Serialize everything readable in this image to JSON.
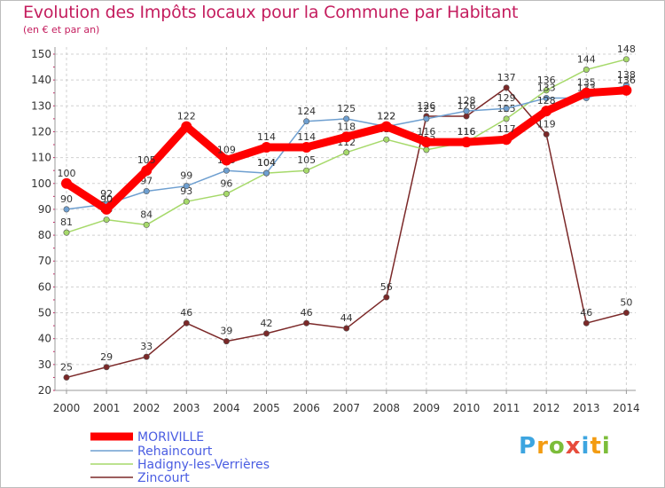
{
  "chart_data": {
    "type": "line",
    "title": "Evolution des Impôts locaux pour la Commune par Habitant",
    "subtitle": "(en € et par an)",
    "x": [
      "2000",
      "2001",
      "2002",
      "2003",
      "2004",
      "2005",
      "2006",
      "2007",
      "2008",
      "2009",
      "2010",
      "2011",
      "2012",
      "2013",
      "2014"
    ],
    "yticks": [
      20,
      30,
      40,
      50,
      60,
      70,
      80,
      90,
      100,
      110,
      120,
      130,
      140,
      150
    ],
    "ylim": [
      20,
      150
    ],
    "grid": true,
    "legend_position": "bottom-left",
    "series": [
      {
        "name": "MORIVILLE",
        "color": "#ff0000",
        "values": [
          100,
          90,
          105,
          122,
          109,
          114,
          114,
          118,
          122,
          116,
          116,
          117,
          128,
          135,
          136
        ]
      },
      {
        "name": "Rehaincourt",
        "color": "#6e9fd0",
        "values": [
          90,
          92,
          97,
          99,
          105,
          104,
          124,
          125,
          122,
          125,
          128,
          129,
          133,
          133,
          138
        ]
      },
      {
        "name": "Hadigny-les-Verrières",
        "color": "#a6d96a",
        "values": [
          81,
          86,
          84,
          93,
          96,
          104,
          105,
          112,
          117,
          113,
          116,
          125,
          136,
          144,
          148
        ]
      },
      {
        "name": "Zincourt",
        "color": "#7b2828",
        "values": [
          25,
          29,
          33,
          46,
          39,
          42,
          46,
          44,
          56,
          126,
          126,
          137,
          119,
          46,
          50
        ]
      }
    ]
  },
  "branding": {
    "logo_letters": [
      "P",
      "r",
      "o",
      "x",
      "i",
      "t",
      "i"
    ],
    "logo_colors": [
      "#3da5e0",
      "#f39c12",
      "#7cbd3a",
      "#e74c3c",
      "#3da5e0",
      "#f39c12",
      "#7cbd3a"
    ]
  }
}
